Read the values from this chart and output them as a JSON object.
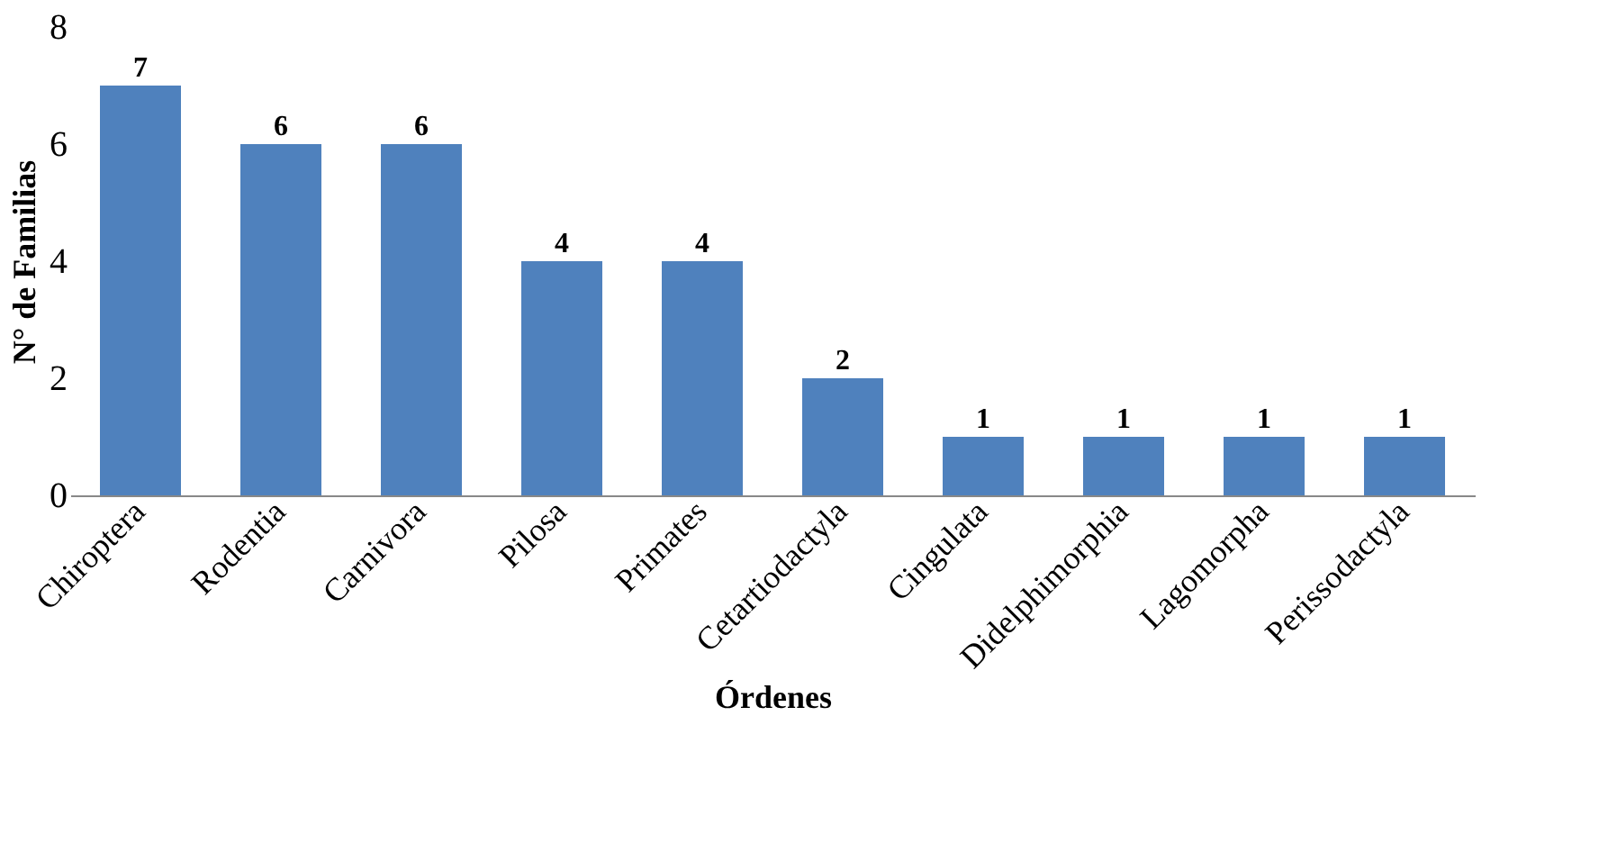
{
  "chart_data": {
    "type": "bar",
    "xlabel": "Órdenes",
    "ylabel": "N° de Familias",
    "categories": [
      "Chiroptera",
      "Rodentia",
      "Carnivora",
      "Pilosa",
      "Primates",
      "Cetartiodactyla",
      "Cingulata",
      "Didelphimorphia",
      "Lagomorpha",
      "Perissodactyla"
    ],
    "values": [
      7,
      6,
      6,
      4,
      4,
      2,
      1,
      1,
      1,
      1
    ],
    "color": "#4f81bd",
    "ylim": [
      0,
      8
    ],
    "yticks": [
      0,
      2,
      4,
      6,
      8
    ],
    "grid": false,
    "data_labels": true
  }
}
